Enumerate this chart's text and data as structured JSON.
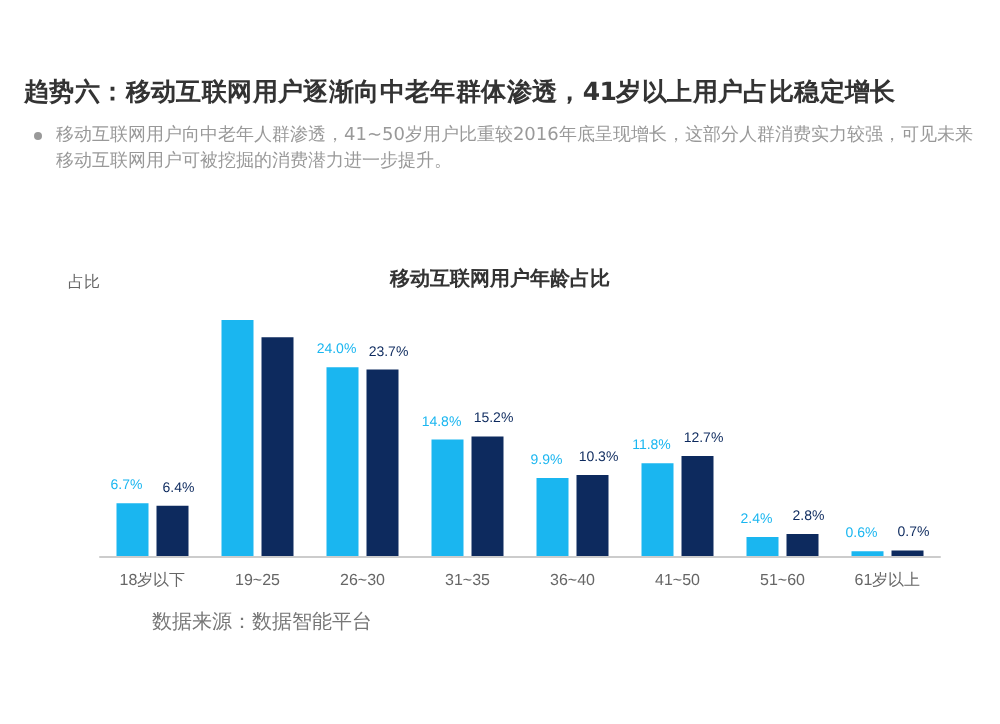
{
  "chart_data": {
    "type": "bar",
    "title": "移动互联网用户年龄占比",
    "subtitle": "趋势六：移动互联网用户逐渐向中老年群体渗透，41岁以上用户占比稳定增长",
    "annotations": [
      "移动互联网用户向中老年人群渗透，41~50岁用户比重较2016年底呈现增长，这部分人群消费实力较强，可见未来移动互联网用户可被挖掘的消费潜力进一步提升。",
      "数据来源：数据智能平台"
    ],
    "ylabel": "占比",
    "categories": [
      "18岁以下",
      "19~25",
      "26~30",
      "31~35",
      "36~40",
      "41~50",
      "51~60",
      "61岁以上"
    ],
    "series": [
      {
        "color": "#1ab6f0",
        "values": [
          6.7,
          30.0,
          24.0,
          14.8,
          9.9,
          11.8,
          2.4,
          0.6
        ],
        "value_labels": [
          "6.7%",
          null,
          "24.0%",
          "14.8%",
          "9.9%",
          "11.8%",
          "2.4%",
          "0.6%"
        ]
      },
      {
        "color": "#0d2a5e",
        "values": [
          6.4,
          27.8,
          23.7,
          15.2,
          10.3,
          12.7,
          2.8,
          0.7
        ],
        "value_labels": [
          "6.4%",
          null,
          "23.7%",
          "15.2%",
          "10.3%",
          "12.7%",
          "2.8%",
          "0.7%"
        ]
      }
    ],
    "tick_labels": "x"
  }
}
